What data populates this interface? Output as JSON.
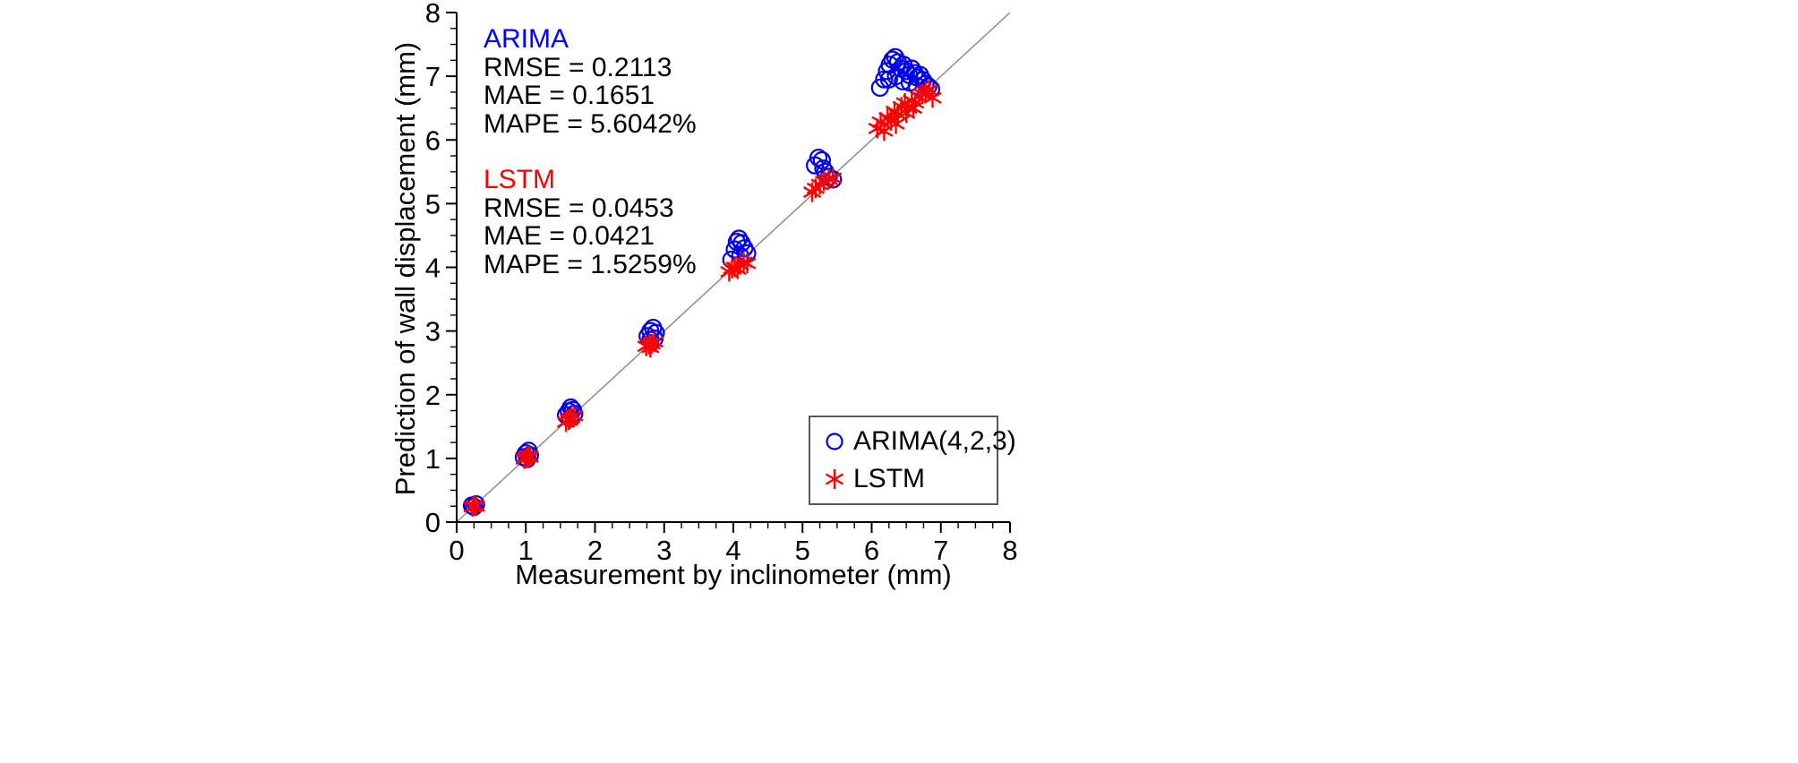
{
  "chart_data": {
    "type": "scatter",
    "xlabel": "Measurement by inclinometer (mm)",
    "ylabel": "Prediction of wall displacement (mm)",
    "xlim": [
      0,
      8
    ],
    "ylim": [
      0,
      8
    ],
    "xticks": [
      0,
      1,
      2,
      3,
      4,
      5,
      6,
      7,
      8
    ],
    "yticks": [
      0,
      1,
      2,
      3,
      4,
      5,
      6,
      7,
      8
    ],
    "minor_tick_step": 0.25,
    "grid": false,
    "identity_line": true,
    "identity_line_color": "#8c8c8c",
    "axis_color": "#000000",
    "series": [
      {
        "name": "ARIMA(4,2,3)",
        "marker": "circle",
        "color": "#0000ee",
        "points": [
          [
            0.22,
            0.26
          ],
          [
            0.25,
            0.24
          ],
          [
            0.28,
            0.28
          ],
          [
            0.97,
            1.02
          ],
          [
            1.0,
            1.08
          ],
          [
            1.02,
            0.99
          ],
          [
            1.04,
            1.12
          ],
          [
            1.06,
            1.05
          ],
          [
            1.58,
            1.68
          ],
          [
            1.62,
            1.74
          ],
          [
            1.65,
            1.8
          ],
          [
            1.68,
            1.76
          ],
          [
            1.7,
            1.7
          ],
          [
            1.64,
            1.63
          ],
          [
            2.76,
            2.92
          ],
          [
            2.8,
            3.0
          ],
          [
            2.84,
            3.05
          ],
          [
            2.88,
            2.97
          ],
          [
            2.8,
            2.86
          ],
          [
            2.86,
            2.88
          ],
          [
            3.97,
            4.12
          ],
          [
            4.02,
            4.28
          ],
          [
            4.05,
            4.4
          ],
          [
            4.08,
            4.45
          ],
          [
            4.12,
            4.38
          ],
          [
            4.16,
            4.3
          ],
          [
            4.2,
            4.22
          ],
          [
            4.1,
            4.18
          ],
          [
            5.18,
            5.6
          ],
          [
            5.23,
            5.72
          ],
          [
            5.28,
            5.68
          ],
          [
            5.33,
            5.5
          ],
          [
            5.38,
            5.42
          ],
          [
            5.44,
            5.38
          ],
          [
            5.3,
            5.55
          ],
          [
            6.12,
            6.82
          ],
          [
            6.18,
            6.95
          ],
          [
            6.22,
            7.08
          ],
          [
            6.25,
            6.95
          ],
          [
            6.26,
            7.18
          ],
          [
            6.3,
            7.26
          ],
          [
            6.34,
            7.3
          ],
          [
            6.35,
            7.0
          ],
          [
            6.38,
            7.22
          ],
          [
            6.42,
            7.12
          ],
          [
            6.45,
            6.92
          ],
          [
            6.46,
            7.18
          ],
          [
            6.5,
            7.08
          ],
          [
            6.54,
            7.02
          ],
          [
            6.55,
            6.9
          ],
          [
            6.58,
            7.12
          ],
          [
            6.62,
            7.05
          ],
          [
            6.65,
            6.85
          ],
          [
            6.66,
            6.98
          ],
          [
            6.7,
            7.02
          ],
          [
            6.74,
            6.94
          ],
          [
            6.78,
            6.88
          ],
          [
            6.82,
            6.84
          ],
          [
            6.86,
            6.8
          ]
        ]
      },
      {
        "name": "LSTM",
        "marker": "asterisk",
        "color": "#ff0000",
        "points": [
          [
            0.23,
            0.24
          ],
          [
            0.26,
            0.26
          ],
          [
            0.28,
            0.25
          ],
          [
            0.98,
            0.99
          ],
          [
            1.01,
            1.01
          ],
          [
            1.04,
            1.04
          ],
          [
            1.06,
            1.02
          ],
          [
            1.58,
            1.57
          ],
          [
            1.62,
            1.6
          ],
          [
            1.66,
            1.64
          ],
          [
            1.7,
            1.67
          ],
          [
            1.64,
            1.62
          ],
          [
            2.74,
            2.76
          ],
          [
            2.78,
            2.79
          ],
          [
            2.82,
            2.8
          ],
          [
            2.86,
            2.83
          ],
          [
            2.8,
            2.74
          ],
          [
            3.94,
            3.93
          ],
          [
            3.98,
            3.98
          ],
          [
            4.02,
            4.0
          ],
          [
            4.06,
            3.97
          ],
          [
            4.1,
            4.04
          ],
          [
            4.15,
            4.08
          ],
          [
            4.2,
            4.06
          ],
          [
            5.14,
            5.18
          ],
          [
            5.19,
            5.24
          ],
          [
            5.25,
            5.3
          ],
          [
            5.31,
            5.35
          ],
          [
            5.38,
            5.38
          ],
          [
            5.44,
            5.4
          ],
          [
            6.08,
            6.18
          ],
          [
            6.13,
            6.28
          ],
          [
            6.18,
            6.14
          ],
          [
            6.23,
            6.35
          ],
          [
            6.28,
            6.3
          ],
          [
            6.33,
            6.45
          ],
          [
            6.35,
            6.25
          ],
          [
            6.38,
            6.4
          ],
          [
            6.43,
            6.52
          ],
          [
            6.48,
            6.58
          ],
          [
            6.5,
            6.42
          ],
          [
            6.53,
            6.5
          ],
          [
            6.58,
            6.62
          ],
          [
            6.6,
            6.5
          ],
          [
            6.63,
            6.58
          ],
          [
            6.68,
            6.68
          ],
          [
            6.73,
            6.72
          ],
          [
            6.78,
            6.76
          ],
          [
            6.83,
            6.78
          ],
          [
            6.88,
            6.66
          ]
        ]
      }
    ],
    "annotations": [
      {
        "title": "ARIMA",
        "color": "#0000ff",
        "lines": [
          "RMSE = 0.2113",
          "MAE = 0.1651",
          "MAPE = 5.6042%"
        ]
      },
      {
        "title": "LSTM",
        "color": "#ff0000",
        "lines": [
          "RMSE = 0.0453",
          "MAE = 0.0421",
          "MAPE = 1.5259%"
        ]
      }
    ],
    "legend": {
      "position": "lower right",
      "entries": [
        "ARIMA(4,2,3)",
        "LSTM"
      ]
    }
  }
}
